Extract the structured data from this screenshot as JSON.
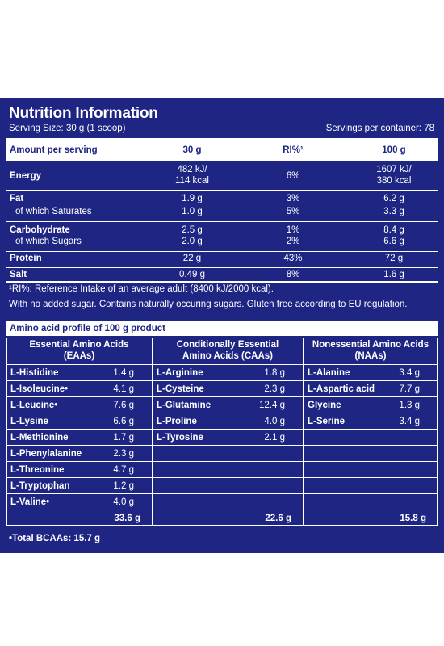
{
  "title": "Nutrition Information",
  "serving_size": "Serving Size: 30 g (1 scoop)",
  "servings_per_container": "Servings per container: 78",
  "nutrition": {
    "headers": [
      "Amount per serving",
      "30 g",
      "RI%¹",
      "100 g"
    ],
    "rows": [
      {
        "name": "Energy",
        "bold": true,
        "v30": "482 kJ/",
        "v30b": "114 kcal",
        "ri": "6%",
        "v100": "1607 kJ/",
        "v100b": "380 kcal"
      },
      {
        "name": "Fat",
        "bold": true,
        "v30": "1.9 g",
        "ri": "3%",
        "v100": "6.2 g"
      },
      {
        "name": "of which Saturates",
        "bold": false,
        "v30": "1.0 g",
        "ri": "5%",
        "v100": "3.3 g"
      },
      {
        "name": "Carbohydrate",
        "bold": true,
        "v30": "2.5 g",
        "ri": "1%",
        "v100": "8.4 g"
      },
      {
        "name": "of which Sugars",
        "bold": false,
        "v30": "2.0 g",
        "ri": "2%",
        "v100": "6.6 g"
      },
      {
        "name": "Protein",
        "bold": true,
        "v30": "22 g",
        "ri": "43%",
        "v100": "72 g"
      },
      {
        "name": "Salt",
        "bold": true,
        "v30": "0.49 g",
        "ri": "8%",
        "v100": "1.6 g"
      }
    ]
  },
  "footnote1": "¹RI%: Reference Intake of an average adult (8400 kJ/2000 kcal).",
  "footnote2": "With no added sugar. Contains naturally occuring sugars. Gluten free according to EU regulation.",
  "amino": {
    "title": "Amino acid profile of 100 g product",
    "col_headers": [
      [
        "Essential Amino Acids",
        "(EAAs)"
      ],
      [
        "Conditionally Essential",
        "Amino Acids (CAAs)"
      ],
      [
        "Nonessential Amino Acids",
        "(NAAs)"
      ]
    ],
    "essential": [
      {
        "name": "L-Histidine",
        "value": "1.4 g"
      },
      {
        "name": "L-Isoleucine•",
        "value": "4.1 g"
      },
      {
        "name": "L-Leucine•",
        "value": "7.6 g"
      },
      {
        "name": "L-Lysine",
        "value": "6.6 g"
      },
      {
        "name": "L-Methionine",
        "value": "1.7 g"
      },
      {
        "name": "L-Phenylalanine",
        "value": "2.3 g"
      },
      {
        "name": "L-Threonine",
        "value": "4.7 g"
      },
      {
        "name": "L-Tryptophan",
        "value": "1.2 g"
      },
      {
        "name": "L-Valine•",
        "value": "4.0 g"
      }
    ],
    "conditional": [
      {
        "name": "L-Arginine",
        "value": "1.8 g"
      },
      {
        "name": "L-Cysteine",
        "value": "2.3 g"
      },
      {
        "name": "L-Glutamine",
        "value": "12.4 g"
      },
      {
        "name": "L-Proline",
        "value": "4.0 g"
      },
      {
        "name": "L-Tyrosine",
        "value": "2.1 g"
      }
    ],
    "nonessential": [
      {
        "name": "L-Alanine",
        "value": "3.4 g"
      },
      {
        "name": "L-Aspartic acid",
        "value": "7.7 g"
      },
      {
        "name": "Glycine",
        "value": "1.3 g"
      },
      {
        "name": "L-Serine",
        "value": "3.4 g"
      }
    ],
    "totals": [
      "33.6 g",
      "22.6 g",
      "15.8 g"
    ],
    "total_bcaas": "•Total BCAAs: 15.7 g"
  },
  "colors": {
    "panel": "#1e2583",
    "text": "#ffffff"
  }
}
